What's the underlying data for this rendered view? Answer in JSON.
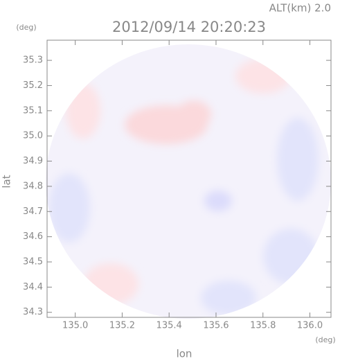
{
  "chart_data": {
    "type": "radar-map",
    "title": "2012/09/14 20:20:23",
    "subtitle": "ALT(km) 2.0",
    "y_unit": "(deg)",
    "x_unit": "(deg)",
    "xlabel": "lon",
    "ylabel": "lat",
    "xlim": [
      134.88,
      136.09
    ],
    "ylim": [
      34.28,
      35.38
    ],
    "xticks": [
      {
        "value": 135.0,
        "label": "135.0"
      },
      135.2,
      135.4,
      135.6,
      135.8,
      {
        "value": 136.0,
        "label": "136.0"
      }
    ],
    "yticks": [
      34.3,
      34.4,
      34.5,
      34.6,
      34.7,
      34.8,
      34.9,
      {
        "value": 35.0,
        "label": "35.0"
      },
      35.1,
      35.2,
      35.3
    ]
  }
}
